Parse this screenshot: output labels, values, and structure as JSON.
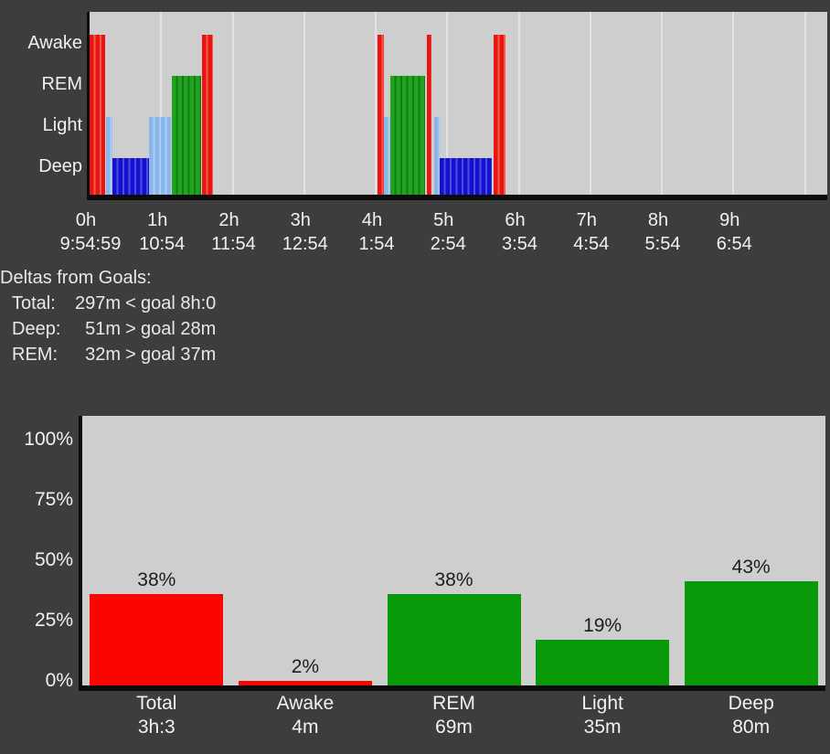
{
  "colors": {
    "background": "#3d3d3d",
    "plot_bg": "#cecece",
    "gridline": "#e2e2e2",
    "axis": "#0b0b0b",
    "text_light": "#f1f1f1",
    "text_dark": "#1d1d1d",
    "bar_red": "#fa0500",
    "bar_green": "#089a08",
    "stage_colors": {
      "Awake": {
        "main": "#e91511",
        "alt": "#f35b4e"
      },
      "REM": {
        "main": "#21a321",
        "alt": "#0f7d12"
      },
      "Light": {
        "main": "#8ab6ec",
        "alt": "#aecff5"
      },
      "Deep": {
        "main": "#1410d0",
        "alt": "#4b50dc"
      }
    }
  },
  "chart_data": [
    {
      "type": "hypnogram",
      "stages": [
        "Awake",
        "REM",
        "Light",
        "Deep"
      ],
      "x_hour_labels": [
        "0h",
        "1h",
        "2h",
        "3h",
        "4h",
        "5h",
        "6h",
        "7h",
        "8h",
        "9h"
      ],
      "x_time_labels": [
        "9:54:59",
        "10:54",
        "11:54",
        "12:54",
        "1:54",
        "2:54",
        "3:54",
        "4:54",
        "5:54",
        "6:54"
      ],
      "xlim_hours": [
        0,
        10.31
      ],
      "grid": true,
      "segments": [
        {
          "stage": "Awake",
          "start": 0.0,
          "end": 0.22
        },
        {
          "stage": "Light",
          "start": 0.23,
          "end": 0.32
        },
        {
          "stage": "Deep",
          "start": 0.32,
          "end": 0.83
        },
        {
          "stage": "Light",
          "start": 0.83,
          "end": 1.14
        },
        {
          "stage": "REM",
          "start": 1.15,
          "end": 1.56
        },
        {
          "stage": "Awake",
          "start": 1.57,
          "end": 1.73
        },
        {
          "stage": "Awake",
          "start": 4.02,
          "end": 4.11
        },
        {
          "stage": "Light",
          "start": 4.12,
          "end": 4.2
        },
        {
          "stage": "REM",
          "start": 4.2,
          "end": 4.69
        },
        {
          "stage": "Awake",
          "start": 4.71,
          "end": 4.78
        },
        {
          "stage": "Light",
          "start": 4.82,
          "end": 4.89
        },
        {
          "stage": "Deep",
          "start": 4.89,
          "end": 5.63
        },
        {
          "stage": "Awake",
          "start": 5.65,
          "end": 5.82
        }
      ]
    },
    {
      "type": "bar",
      "categories": [
        "Total",
        "Awake",
        "REM",
        "Light",
        "Deep"
      ],
      "durations": [
        "3h:3",
        "4m",
        "69m",
        "35m",
        "80m"
      ],
      "values": [
        38,
        2,
        38,
        19,
        43
      ],
      "value_labels": [
        "38%",
        "2%",
        "38%",
        "19%",
        "43%"
      ],
      "bar_colors": [
        "red",
        "red",
        "green",
        "green",
        "green"
      ],
      "y_ticks": [
        0,
        25,
        50,
        75,
        100
      ],
      "y_tick_labels": [
        "0%",
        "25%",
        "50%",
        "75%",
        "100%"
      ],
      "ylim": [
        0,
        111
      ],
      "grid": false,
      "legend": "none"
    }
  ],
  "deltas": {
    "title": "Deltas from Goals:",
    "rows": [
      {
        "label": "Total:",
        "value": "297m",
        "cmp": "<",
        "goal": "goal 8h:0"
      },
      {
        "label": "Deep:",
        "value": "51m",
        "cmp": ">",
        "goal": "goal 28m"
      },
      {
        "label": "REM:",
        "value": "32m",
        "cmp": ">",
        "goal": "goal 37m"
      }
    ]
  }
}
